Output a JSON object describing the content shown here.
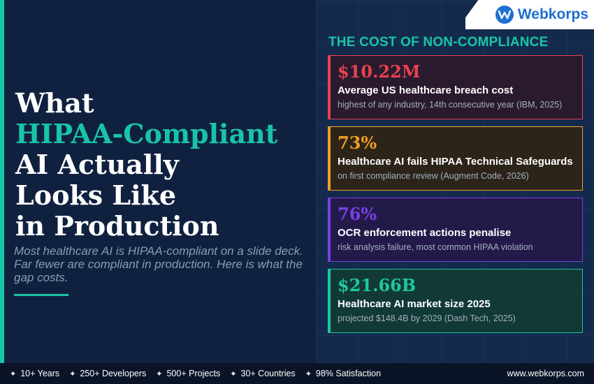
{
  "brand": {
    "name": "Webkorps",
    "icon": "w-logo-icon",
    "color": "#1f6fd1"
  },
  "headline": {
    "line1": "What",
    "line2": "HIPAA-Compliant",
    "line3": "AI Actually",
    "line4": "Looks Like",
    "line5": "in Production",
    "accent_color": "#19c4a6"
  },
  "subtitle": "Most healthcare AI is HIPAA-compliant on a slide deck. Far fewer are compliant in production. Here is what the gap costs.",
  "section_title": "THE COST OF NON-COMPLIANCE",
  "cards": [
    {
      "value": "$10.22M",
      "label": "Average US healthcare breach cost",
      "note": "highest of any industry, 14th consecutive year (IBM, 2025)",
      "accent": "#e8424f",
      "bg": "#2a1a2e"
    },
    {
      "value": "73%",
      "label": "Healthcare AI fails HIPAA Technical Safeguards",
      "note": "on first compliance review (Augment Code, 2026)",
      "accent": "#f0a020",
      "bg": "#2c2418"
    },
    {
      "value": "76%",
      "label": "OCR enforcement actions penalise",
      "note": "risk analysis failure, most common HIPAA violation",
      "accent": "#7b3fe4",
      "bg": "#241a4a"
    },
    {
      "value": "$21.66B",
      "label": "Healthcare AI market size 2025",
      "note": "projected $148.4B by 2029 (Dash Tech, 2025)",
      "accent": "#1fc79f",
      "bg": "#113935"
    }
  ],
  "footer": {
    "stats": [
      "10+ Years",
      "250+ Developers",
      "500+ Projects",
      "30+ Countries",
      "98% Satisfaction"
    ],
    "star_icon": "✦",
    "url": "www.webkorps.com"
  }
}
